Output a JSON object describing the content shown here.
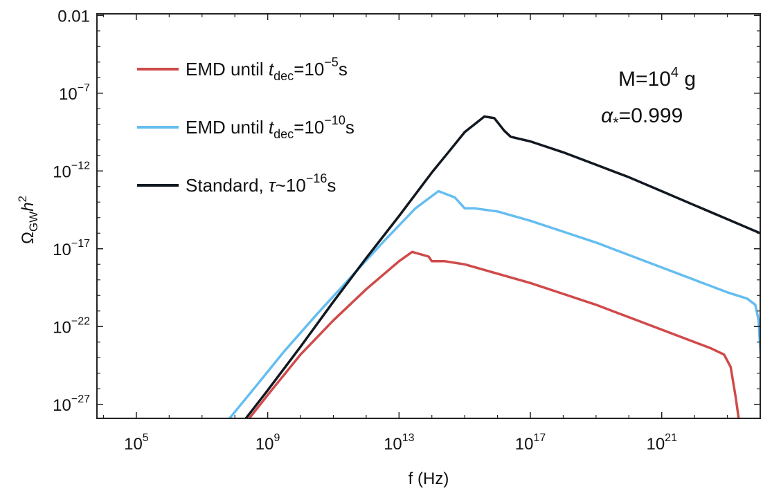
{
  "chart_data": {
    "type": "line",
    "xlabel": "f (Hz)",
    "ylabel": "ΩGWh2",
    "xscale": "log10",
    "yscale": "log10",
    "xlim_log10": [
      3.8,
      24.0
    ],
    "ylim_log10": [
      -27.9,
      -1.9
    ],
    "x_ticks_log10": [
      5,
      9,
      13,
      17,
      21
    ],
    "x_tick_labels": [
      "10^5",
      "10^9",
      "10^13",
      "10^17",
      "10^21"
    ],
    "y_ticks_log10": [
      -2,
      -7,
      -12,
      -17,
      -22,
      -27
    ],
    "y_tick_labels": [
      "0.01",
      "10^-7",
      "10^-12",
      "10^-17",
      "10^-22",
      "10^-27"
    ],
    "annotations": [
      "M=10^4 g",
      "α*=0.999"
    ],
    "legend_position": "top-left",
    "series": [
      {
        "name": "EMD until t_dec=10^-5 s",
        "legend_main": "EMD until ",
        "legend_var": "t",
        "legend_sub": "dec",
        "legend_eq": "=10",
        "legend_exp": "−5",
        "legend_unit": "s",
        "color": "#d04a4a",
        "points_log10": [
          [
            8.4,
            -28.0
          ],
          [
            9.0,
            -26.4
          ],
          [
            10.0,
            -23.8
          ],
          [
            11.0,
            -21.6
          ],
          [
            12.0,
            -19.6
          ],
          [
            13.0,
            -17.8
          ],
          [
            13.4,
            -17.2
          ],
          [
            13.9,
            -17.5
          ],
          [
            14.0,
            -17.8
          ],
          [
            14.4,
            -17.8
          ],
          [
            15.0,
            -18.0
          ],
          [
            16.0,
            -18.6
          ],
          [
            17.0,
            -19.2
          ],
          [
            18.0,
            -19.9
          ],
          [
            19.0,
            -20.6
          ],
          [
            20.0,
            -21.4
          ],
          [
            21.0,
            -22.2
          ],
          [
            22.0,
            -23.0
          ],
          [
            22.5,
            -23.4
          ],
          [
            22.9,
            -23.8
          ],
          [
            23.1,
            -24.6
          ],
          [
            23.25,
            -26.5
          ],
          [
            23.35,
            -28.0
          ]
        ]
      },
      {
        "name": "EMD until t_dec=10^-10 s",
        "legend_main": "EMD until ",
        "legend_var": "t",
        "legend_sub": "dec",
        "legend_eq": "=10",
        "legend_exp": "−10",
        "legend_unit": "s",
        "color": "#65bdf0",
        "points_log10": [
          [
            7.8,
            -28.0
          ],
          [
            8.5,
            -26.2
          ],
          [
            9.5,
            -23.6
          ],
          [
            10.5,
            -21.2
          ],
          [
            11.5,
            -18.9
          ],
          [
            12.5,
            -16.6
          ],
          [
            13.5,
            -14.4
          ],
          [
            14.2,
            -13.3
          ],
          [
            14.7,
            -13.7
          ],
          [
            15.0,
            -14.4
          ],
          [
            15.3,
            -14.4
          ],
          [
            16.0,
            -14.6
          ],
          [
            17.0,
            -15.2
          ],
          [
            18.0,
            -15.9
          ],
          [
            19.0,
            -16.6
          ],
          [
            20.0,
            -17.4
          ],
          [
            21.0,
            -18.2
          ],
          [
            22.0,
            -19.0
          ],
          [
            23.0,
            -19.8
          ],
          [
            23.6,
            -20.2
          ],
          [
            23.85,
            -20.6
          ],
          [
            23.95,
            -21.6
          ],
          [
            24.0,
            -23.4
          ],
          [
            24.05,
            -24.8
          ]
        ]
      },
      {
        "name": "Standard, τ~10^-16 s",
        "legend_main": "Standard, ",
        "legend_var": "τ",
        "legend_sub": "",
        "legend_eq": "~10",
        "legend_exp": "−16",
        "legend_unit": "s",
        "color": "#111820",
        "points_log10": [
          [
            8.3,
            -28.0
          ],
          [
            9.0,
            -26.1
          ],
          [
            10.0,
            -23.3
          ],
          [
            11.0,
            -20.4
          ],
          [
            12.0,
            -17.6
          ],
          [
            13.0,
            -14.9
          ],
          [
            14.0,
            -12.1
          ],
          [
            14.5,
            -10.8
          ],
          [
            15.0,
            -9.5
          ],
          [
            15.6,
            -8.5
          ],
          [
            15.9,
            -8.6
          ],
          [
            16.2,
            -9.4
          ],
          [
            16.4,
            -9.8
          ],
          [
            17.0,
            -10.1
          ],
          [
            18.0,
            -10.8
          ],
          [
            19.0,
            -11.6
          ],
          [
            20.0,
            -12.4
          ],
          [
            21.0,
            -13.3
          ],
          [
            22.0,
            -14.2
          ],
          [
            23.0,
            -15.1
          ],
          [
            24.0,
            -16.0
          ]
        ]
      }
    ]
  }
}
